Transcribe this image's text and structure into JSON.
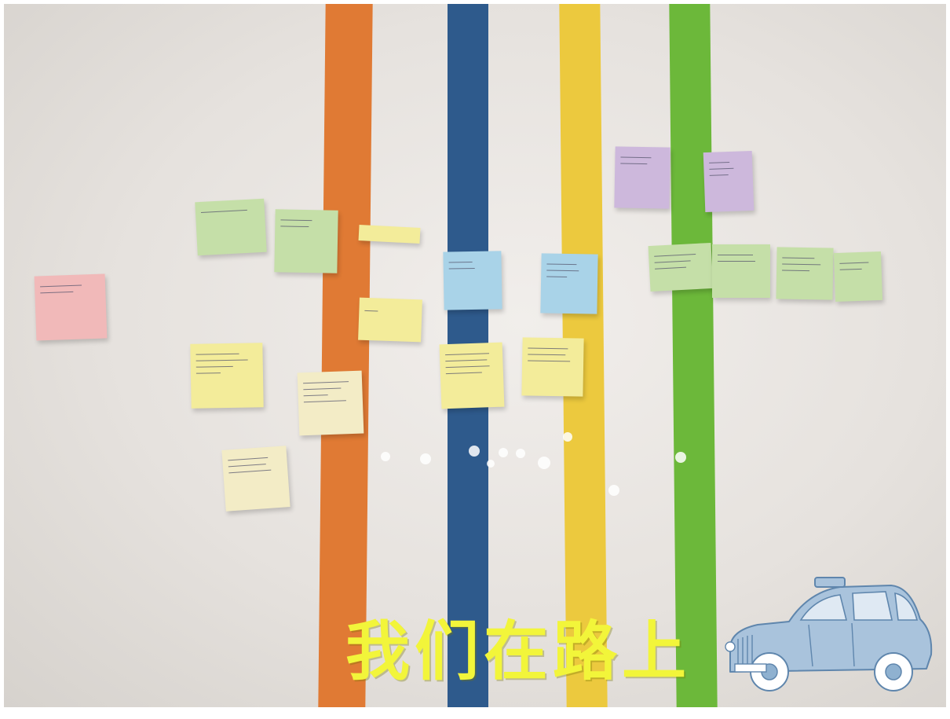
{
  "caption": "我们在路上",
  "colors": {
    "wall": "#e8e4e0",
    "stripe_orange": "#e07a34",
    "stripe_blue": "#2e5a8c",
    "stripe_yellow": "#ecc93e",
    "stripe_green": "#6cb83a",
    "note_pink": "#f1b9b9",
    "note_green": "#c5dfa8",
    "note_yellow": "#f3ec9a",
    "note_cream": "#f3ecc6",
    "note_blue": "#a9d3e8",
    "note_purple": "#cdb8dc",
    "caption_yellow": "#f2f53a",
    "taxi_blue": "#8fb1d0"
  },
  "icons": {
    "taxi": "taxi-sketch-icon"
  }
}
